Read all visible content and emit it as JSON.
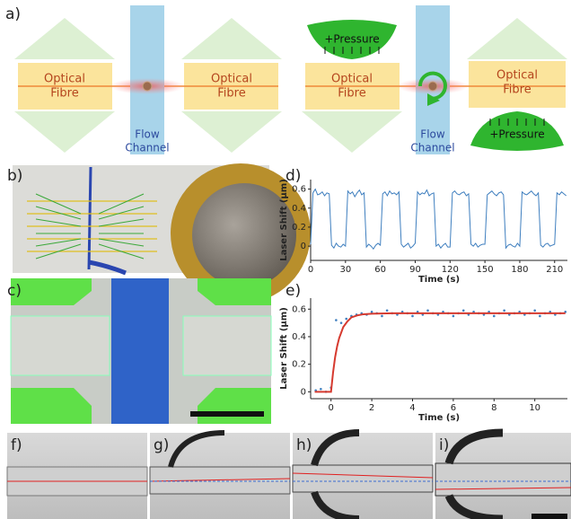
{
  "figure": {
    "labels": [
      "a)",
      "b)",
      "c)",
      "d)",
      "e)",
      "f)",
      "g)",
      "h)",
      "i)"
    ],
    "fibres": [
      [
        "Optical",
        "Fibre"
      ],
      [
        "Optical",
        "Fibre"
      ],
      [
        "Optical",
        "Fibre"
      ],
      [
        "Optical",
        "Fibre"
      ]
    ],
    "channels": [
      [
        "Flow",
        "Channel"
      ],
      [
        "Flow",
        "Channel"
      ]
    ],
    "pressure": [
      "+Pressure",
      "+Pressure"
    ]
  },
  "chart_data": [
    {
      "type": "line",
      "ylabel": "Laser Shift (µm)",
      "xlabel": "Time (s)",
      "xlim": [
        0,
        221
      ],
      "ylim": [
        -0.15,
        0.7
      ],
      "xticks": [
        0,
        30,
        60,
        90,
        120,
        150,
        180,
        210
      ],
      "yticks": [
        0,
        0.2,
        0.4,
        0.6
      ],
      "color": "#3f7fbf",
      "x": [
        0,
        2,
        4,
        6,
        8,
        10,
        12,
        14,
        16,
        18,
        20,
        22,
        24,
        26,
        28,
        30,
        32,
        34,
        36,
        38,
        40,
        42,
        44,
        46,
        48,
        50,
        52,
        54,
        56,
        58,
        60,
        62,
        64,
        66,
        68,
        70,
        72,
        74,
        76,
        78,
        80,
        82,
        84,
        86,
        88,
        90,
        92,
        94,
        96,
        98,
        100,
        102,
        104,
        106,
        108,
        110,
        112,
        114,
        116,
        118,
        120,
        122,
        124,
        126,
        128,
        130,
        132,
        134,
        136,
        138,
        140,
        142,
        144,
        146,
        148,
        150,
        152,
        154,
        156,
        158,
        160,
        162,
        164,
        166,
        168,
        170,
        172,
        174,
        176,
        178,
        180,
        182,
        184,
        186,
        188,
        190,
        192,
        194,
        196,
        198,
        200,
        202,
        204,
        206,
        208,
        210,
        212,
        214,
        216,
        218,
        220
      ],
      "values": [
        0.02,
        0.56,
        0.6,
        0.54,
        0.55,
        0.57,
        0.53,
        0.56,
        0.55,
        0.01,
        -0.02,
        0.03,
        0.0,
        -0.01,
        0.02,
        0.0,
        0.58,
        0.55,
        0.57,
        0.52,
        0.56,
        0.59,
        0.54,
        0.56,
        -0.01,
        0.02,
        0.0,
        -0.03,
        0.01,
        0.03,
        0.01,
        0.55,
        0.57,
        0.53,
        0.58,
        0.55,
        0.56,
        0.54,
        0.57,
        0.02,
        -0.01,
        0.01,
        0.03,
        -0.02,
        0.0,
        0.03,
        0.57,
        0.54,
        0.56,
        0.55,
        0.59,
        0.53,
        0.55,
        0.56,
        0.0,
        0.02,
        -0.02,
        0.01,
        0.03,
        -0.01,
        -0.01,
        0.56,
        0.58,
        0.55,
        0.54,
        0.56,
        0.57,
        0.53,
        0.55,
        0.02,
        0.0,
        0.03,
        -0.01,
        0.01,
        0.02,
        0.02,
        0.54,
        0.56,
        0.58,
        0.55,
        0.53,
        0.56,
        0.57,
        0.54,
        -0.02,
        0.01,
        0.02,
        0.0,
        -0.01,
        0.03,
        0.0,
        0.57,
        0.55,
        0.54,
        0.56,
        0.58,
        0.55,
        0.53,
        0.56,
        0.01,
        -0.01,
        0.02,
        0.03,
        0.0,
        0.01,
        0.02,
        0.56,
        0.54,
        0.57,
        0.55,
        0.53
      ]
    },
    {
      "type": "scatter",
      "ylabel": "Laser Shift (µm)",
      "xlabel": "Time (s)",
      "xlim": [
        -1,
        11.6
      ],
      "ylim": [
        -0.05,
        0.68
      ],
      "xticks": [
        0,
        2,
        4,
        6,
        8,
        10
      ],
      "yticks": [
        0,
        0.2,
        0.4,
        0.6
      ],
      "series": [
        {
          "mode": "markers",
          "color": "#3f7fbf",
          "x": [
            -0.75,
            -0.5,
            -0.25,
            0,
            0.25,
            0.5,
            0.75,
            1,
            1.25,
            1.5,
            1.75,
            2,
            2.25,
            2.5,
            2.75,
            3,
            3.25,
            3.5,
            3.75,
            4,
            4.25,
            4.5,
            4.75,
            5,
            5.25,
            5.5,
            5.75,
            6,
            6.25,
            6.5,
            6.75,
            7,
            7.25,
            7.5,
            7.75,
            8,
            8.25,
            8.5,
            8.75,
            9,
            9.25,
            9.5,
            9.75,
            10,
            10.25,
            10.5,
            10.75,
            11,
            11.25,
            11.5
          ],
          "values": [
            0.01,
            0.02,
            0.0,
            0.03,
            0.52,
            0.5,
            0.53,
            0.55,
            0.56,
            0.57,
            0.56,
            0.58,
            0.57,
            0.55,
            0.59,
            0.57,
            0.56,
            0.58,
            0.57,
            0.55,
            0.58,
            0.56,
            0.59,
            0.57,
            0.56,
            0.58,
            0.57,
            0.55,
            0.57,
            0.59,
            0.56,
            0.58,
            0.57,
            0.56,
            0.58,
            0.55,
            0.57,
            0.59,
            0.56,
            0.57,
            0.58,
            0.56,
            0.57,
            0.59,
            0.55,
            0.57,
            0.58,
            0.56,
            0.57,
            0.58
          ]
        },
        {
          "mode": "line",
          "color": "#d63a2f",
          "x": [
            -0.8,
            -0.2,
            0,
            0.1,
            0.2,
            0.3,
            0.4,
            0.6,
            0.8,
            1,
            1.3,
            1.6,
            2,
            3,
            4,
            6,
            8,
            10,
            11.5
          ],
          "values": [
            0,
            0,
            0,
            0.14,
            0.25,
            0.33,
            0.39,
            0.47,
            0.51,
            0.54,
            0.555,
            0.563,
            0.567,
            0.57,
            0.57,
            0.57,
            0.57,
            0.57,
            0.57
          ]
        }
      ]
    }
  ]
}
